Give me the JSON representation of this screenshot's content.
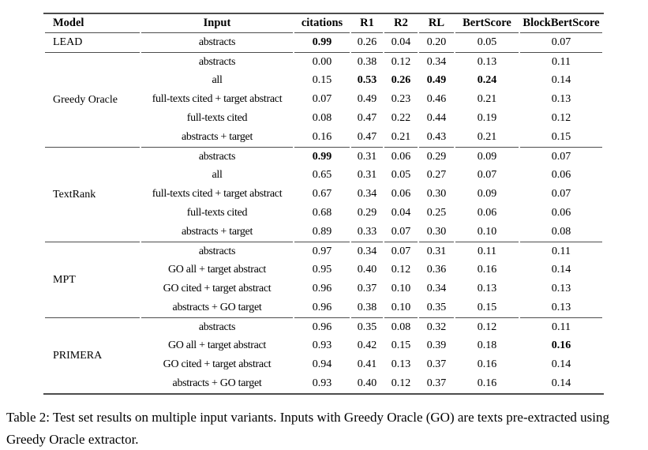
{
  "table": {
    "columns": [
      "Model",
      "Input",
      "citations",
      "R1",
      "R2",
      "RL",
      "BertScore",
      "BlockBertScore"
    ],
    "groups": [
      {
        "model": "LEAD",
        "rows": [
          {
            "input": "abstracts",
            "values": [
              "0.99",
              "0.26",
              "0.04",
              "0.20",
              "0.05",
              "0.07"
            ],
            "bold": [
              0
            ]
          }
        ]
      },
      {
        "model": "Greedy Oracle",
        "rows": [
          {
            "input": "abstracts",
            "values": [
              "0.00",
              "0.38",
              "0.12",
              "0.34",
              "0.13",
              "0.11"
            ],
            "bold": []
          },
          {
            "input": "all",
            "values": [
              "0.15",
              "0.53",
              "0.26",
              "0.49",
              "0.24",
              "0.14"
            ],
            "bold": [
              1,
              2,
              3,
              4
            ]
          },
          {
            "input": "full-texts cited + target abstract",
            "values": [
              "0.07",
              "0.49",
              "0.23",
              "0.46",
              "0.21",
              "0.13"
            ],
            "bold": []
          },
          {
            "input": "full-texts cited",
            "values": [
              "0.08",
              "0.47",
              "0.22",
              "0.44",
              "0.19",
              "0.12"
            ],
            "bold": []
          },
          {
            "input": "abstracts + target",
            "values": [
              "0.16",
              "0.47",
              "0.21",
              "0.43",
              "0.21",
              "0.15"
            ],
            "bold": []
          }
        ]
      },
      {
        "model": "TextRank",
        "rows": [
          {
            "input": "abstracts",
            "values": [
              "0.99",
              "0.31",
              "0.06",
              "0.29",
              "0.09",
              "0.07"
            ],
            "bold": [
              0
            ]
          },
          {
            "input": "all",
            "values": [
              "0.65",
              "0.31",
              "0.05",
              "0.27",
              "0.07",
              "0.06"
            ],
            "bold": []
          },
          {
            "input": "full-texts cited + target abstract",
            "values": [
              "0.67",
              "0.34",
              "0.06",
              "0.30",
              "0.09",
              "0.07"
            ],
            "bold": []
          },
          {
            "input": "full-texts cited",
            "values": [
              "0.68",
              "0.29",
              "0.04",
              "0.25",
              "0.06",
              "0.06"
            ],
            "bold": []
          },
          {
            "input": "abstracts + target",
            "values": [
              "0.89",
              "0.33",
              "0.07",
              "0.30",
              "0.10",
              "0.08"
            ],
            "bold": []
          }
        ]
      },
      {
        "model": "MPT",
        "rows": [
          {
            "input": "abstracts",
            "values": [
              "0.97",
              "0.34",
              "0.07",
              "0.31",
              "0.11",
              "0.11"
            ],
            "bold": []
          },
          {
            "input": "GO all + target abstract",
            "values": [
              "0.95",
              "0.40",
              "0.12",
              "0.36",
              "0.16",
              "0.14"
            ],
            "bold": []
          },
          {
            "input": "GO cited + target abstract",
            "values": [
              "0.96",
              "0.37",
              "0.10",
              "0.34",
              "0.13",
              "0.13"
            ],
            "bold": []
          },
          {
            "input": "abstracts + GO target",
            "values": [
              "0.96",
              "0.38",
              "0.10",
              "0.35",
              "0.15",
              "0.13"
            ],
            "bold": []
          }
        ]
      },
      {
        "model": "PRIMERA",
        "rows": [
          {
            "input": "abstracts",
            "values": [
              "0.96",
              "0.35",
              "0.08",
              "0.32",
              "0.12",
              "0.11"
            ],
            "bold": []
          },
          {
            "input": "GO all + target abstract",
            "values": [
              "0.93",
              "0.42",
              "0.15",
              "0.39",
              "0.18",
              "0.16"
            ],
            "bold": [
              5
            ]
          },
          {
            "input": "GO cited + target abstract",
            "values": [
              "0.94",
              "0.41",
              "0.13",
              "0.37",
              "0.16",
              "0.14"
            ],
            "bold": []
          },
          {
            "input": "abstracts + GO target",
            "values": [
              "0.93",
              "0.40",
              "0.12",
              "0.37",
              "0.16",
              "0.14"
            ],
            "bold": []
          }
        ]
      }
    ]
  },
  "caption": "Table 2: Test set results on multiple input variants. Inputs with Greedy Oracle (GO) are texts pre-extracted using Greedy Oracle extractor."
}
